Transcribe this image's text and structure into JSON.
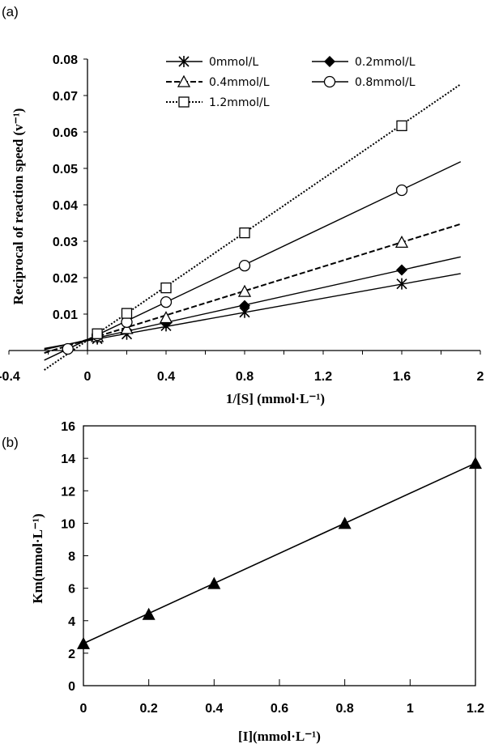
{
  "chart_data": [
    {
      "type": "line",
      "panel_label": "(a)",
      "xlabel": "1/[S] (mmol·L⁻¹)",
      "ylabel": "Reciprocal of reaction speed (v⁻¹)",
      "xlim": [
        -0.4,
        2
      ],
      "ylim": [
        0,
        0.08
      ],
      "xticks": [
        "-0.4",
        "0",
        "0.4",
        "0.8",
        "1.2",
        "1.6",
        "2"
      ],
      "yticks": [
        "0.01",
        "0.02",
        "0.03",
        "0.04",
        "0.05",
        "0.06",
        "0.07",
        "0.08"
      ],
      "legend_position": "top",
      "x": [
        0.05,
        0.2,
        0.4,
        0.8,
        1.6
      ],
      "series": [
        {
          "name": "0mmol/L",
          "marker": "asterisk",
          "dash": "solid",
          "values": [
            0.0032,
            0.0045,
            0.0068,
            0.0105,
            0.0183
          ],
          "fit": {
            "slope": 0.0097,
            "intercept": 0.0027
          }
        },
        {
          "name": "0.2mmol/L",
          "marker": "diamond-filled",
          "dash": "solid",
          "values": [
            0.0035,
            0.0055,
            0.0075,
            0.0123,
            0.0221
          ],
          "fit": {
            "slope": 0.012,
            "intercept": 0.0029
          }
        },
        {
          "name": "0.4mmol/L",
          "marker": "triangle-open",
          "dash": "dashed",
          "values": [
            0.0038,
            0.006,
            0.009,
            0.0162,
            0.0297
          ],
          "fit": {
            "slope": 0.0167,
            "intercept": 0.003
          }
        },
        {
          "name": "0.8mmol/L",
          "marker": "circle-open",
          "dash": "solid",
          "values": [
            0.0042,
            0.0078,
            0.0133,
            0.0233,
            0.044
          ],
          "fit": {
            "slope": 0.0257,
            "intercept": 0.003
          }
        },
        {
          "name": "1.2mmol/L",
          "marker": "square-open",
          "dash": "dotted",
          "values": [
            0.0046,
            0.0102,
            0.0172,
            0.0323,
            0.0617
          ],
          "fit": {
            "slope": 0.037,
            "intercept": 0.0028
          }
        }
      ],
      "fit_range": [
        -0.22,
        1.9
      ],
      "extra_point": {
        "x": -0.1,
        "y": 0.0
      }
    },
    {
      "type": "line",
      "panel_label": "(b)",
      "xlabel": "[I](mmol·L⁻¹)",
      "ylabel": "Km(mmol·L⁻¹)",
      "xlim": [
        0,
        1.2
      ],
      "ylim": [
        0,
        16
      ],
      "xticks": [
        "0",
        "0.2",
        "0.4",
        "0.6",
        "0.8",
        "1",
        "1.2"
      ],
      "yticks": [
        "0",
        "2",
        "4",
        "6",
        "8",
        "10",
        "12",
        "14",
        "16"
      ],
      "x": [
        0,
        0.2,
        0.4,
        0.8,
        1.2
      ],
      "series": [
        {
          "name": "Km",
          "marker": "triangle-filled",
          "values": [
            2.6,
            4.4,
            6.3,
            10,
            13.7
          ]
        }
      ],
      "fit": {
        "x": [
          0,
          1.2
        ],
        "y": [
          2.6,
          13.7
        ]
      }
    }
  ]
}
